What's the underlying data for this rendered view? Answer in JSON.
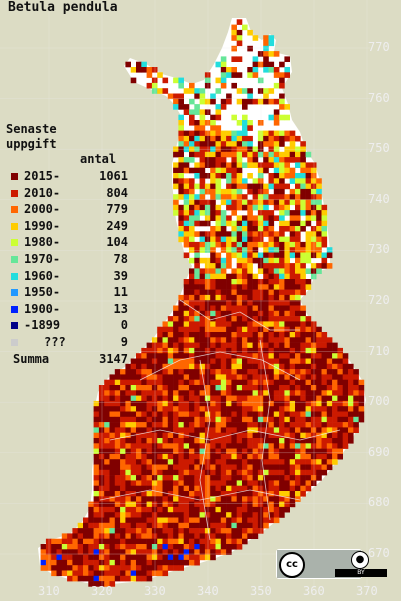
{
  "title": "Betula pendula",
  "legend": {
    "heading_line1": "Senaste",
    "heading_line2": "uppgift",
    "count_header": "antal",
    "entries": [
      {
        "label": "2015-",
        "count": "1061",
        "color": "#800000"
      },
      {
        "label": "2010-",
        "count": "804",
        "color": "#cc1a00"
      },
      {
        "label": "2000-",
        "count": "779",
        "color": "#ff6600"
      },
      {
        "label": "1990-",
        "count": "249",
        "color": "#ffcc00"
      },
      {
        "label": "1980-",
        "count": "104",
        "color": "#ccff33"
      },
      {
        "label": "1970-",
        "count": "78",
        "color": "#66e699"
      },
      {
        "label": "1960-",
        "count": "39",
        "color": "#22dddd"
      },
      {
        "label": "1950-",
        "count": "11",
        "color": "#2299ff"
      },
      {
        "label": "1900-",
        "count": "13",
        "color": "#0022ff"
      },
      {
        "label": "-1899",
        "count": "0",
        "color": "#000088"
      },
      {
        "label": "???",
        "count": "9",
        "color": "#cccccc"
      }
    ],
    "total_label": "Summa",
    "total_count": "3147"
  },
  "y_axis_ticks": [
    "770",
    "760",
    "750",
    "740",
    "730",
    "720",
    "710",
    "700",
    "690",
    "680",
    "670"
  ],
  "x_axis_ticks": [
    "310",
    "320",
    "330",
    "340",
    "350",
    "360",
    "370"
  ],
  "license": {
    "cc_text": "cc",
    "by_text": "BY",
    "by_icon": "person-icon"
  },
  "colors": {
    "background": "#dcdcc4",
    "unsurveyed": "#ffffff"
  }
}
